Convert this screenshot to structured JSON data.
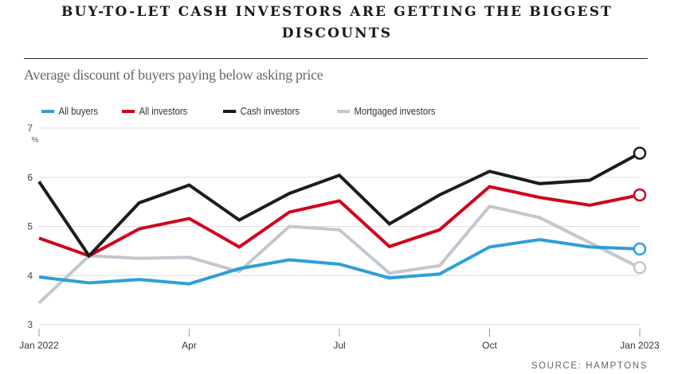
{
  "header": {
    "title": "BUY-TO-LET CASH INVESTORS ARE GETTING THE BIGGEST DISCOUNTS",
    "subtitle": "Average discount of buyers paying below asking price"
  },
  "footer": {
    "source": "SOURCE: HAMPTONS"
  },
  "chart_data": {
    "type": "line",
    "title": "BUY-TO-LET CASH INVESTORS ARE GETTING THE BIGGEST DISCOUNTS",
    "subtitle": "Average discount of buyers paying below asking price",
    "xlabel": "",
    "ylabel": "%",
    "ylim": [
      3,
      7
    ],
    "yticks": [
      "3",
      "4",
      "5",
      "6",
      "7"
    ],
    "grid": true,
    "legend_position": "top-left",
    "x": [
      "Jan 2022",
      "Feb 2022",
      "Mar 2022",
      "Apr 2022",
      "May 2022",
      "Jun 2022",
      "Jul 2022",
      "Aug 2022",
      "Sep 2022",
      "Oct 2022",
      "Nov 2022",
      "Dec 2022",
      "Jan 2023"
    ],
    "xtick_labels": [
      {
        "index": 0,
        "label": "Jan 2022"
      },
      {
        "index": 3,
        "label": "Apr"
      },
      {
        "index": 6,
        "label": "Jul"
      },
      {
        "index": 9,
        "label": "Oct"
      },
      {
        "index": 12,
        "label": "Jan 2023"
      }
    ],
    "series": [
      {
        "name": "All buyers",
        "color": "#2e9fd9",
        "values": [
          3.97,
          3.85,
          3.92,
          3.83,
          4.14,
          4.32,
          4.23,
          3.95,
          4.03,
          4.58,
          4.73,
          4.58,
          4.54
        ]
      },
      {
        "name": "All investors",
        "color": "#d0021b",
        "values": [
          4.76,
          4.4,
          4.95,
          5.16,
          4.58,
          5.29,
          5.52,
          4.59,
          4.93,
          5.81,
          5.59,
          5.43,
          5.64
        ]
      },
      {
        "name": "Cash investors",
        "color": "#1c1c1c",
        "values": [
          5.91,
          4.4,
          5.48,
          5.84,
          5.13,
          5.67,
          6.04,
          5.05,
          5.64,
          6.12,
          5.87,
          5.94,
          6.49
        ]
      },
      {
        "name": "Mortgaged investors",
        "color": "#c2c7cf",
        "values": [
          3.44,
          4.4,
          4.35,
          4.37,
          4.08,
          5.0,
          4.93,
          4.05,
          4.2,
          5.41,
          5.18,
          4.67,
          4.16
        ]
      }
    ]
  }
}
